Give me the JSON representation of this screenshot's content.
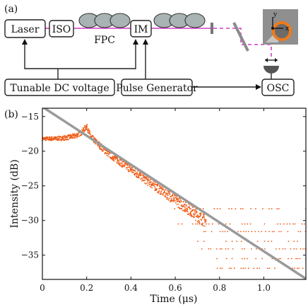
{
  "panel_a": {
    "label": "(a)",
    "boxes": {
      "laser": "Laser",
      "iso": "ISO",
      "im": "IM",
      "osc": "OSC",
      "tunable_dc": "Tunable DC voltage",
      "pulse_gen": "Pulse Generator"
    },
    "fpc_label": "FPC",
    "axis_y": "y",
    "axis_x": "x",
    "colors": {
      "fiber": "#d23cc8",
      "coil": "#a9b3b3",
      "resonator": "#f07a1a",
      "stage": "#8f8f8f"
    }
  },
  "panel_b": {
    "label": "(b)"
  },
  "chart_data": {
    "type": "scatter",
    "xlabel": "Time (μs)",
    "ylabel": "Intensity (dB)",
    "xlim": [
      0,
      1.19
    ],
    "ylim": [
      -38.5,
      -13.8
    ],
    "xticks": [
      "0",
      "0.2",
      "0.4",
      "0.6",
      "0.8",
      "1.0"
    ],
    "yticks": [
      "−15",
      "−20",
      "−25",
      "−30",
      "−35"
    ],
    "series": [
      {
        "kind": "points",
        "color": "#f05a14",
        "x": [
          0.0,
          0.05,
          0.1,
          0.15,
          0.18,
          0.2,
          0.22,
          0.3,
          0.4,
          0.5,
          0.6,
          0.65,
          0.7,
          0.75,
          0.8,
          0.9,
          1.0,
          1.1,
          1.19
        ],
        "y": [
          -18.2,
          -18.2,
          -18.1,
          -17.8,
          -17.2,
          -16.4,
          -18.0,
          -20.4,
          -22.6,
          -24.8,
          -27.0,
          -28.1,
          -29.3,
          -30.4,
          -31.5,
          -33.5,
          -35.6,
          -37.8,
          -38.4
        ]
      },
      {
        "kind": "fit-line",
        "color": "#9a9a9a",
        "x": [
          0.0,
          1.19
        ],
        "y": [
          -13.6,
          -38.4
        ]
      }
    ],
    "noise_floor_levels": [
      -28.3,
      -30.5,
      -31.6,
      -33.0,
      -34.1,
      -35.5,
      -36.9
    ],
    "grid": false
  }
}
